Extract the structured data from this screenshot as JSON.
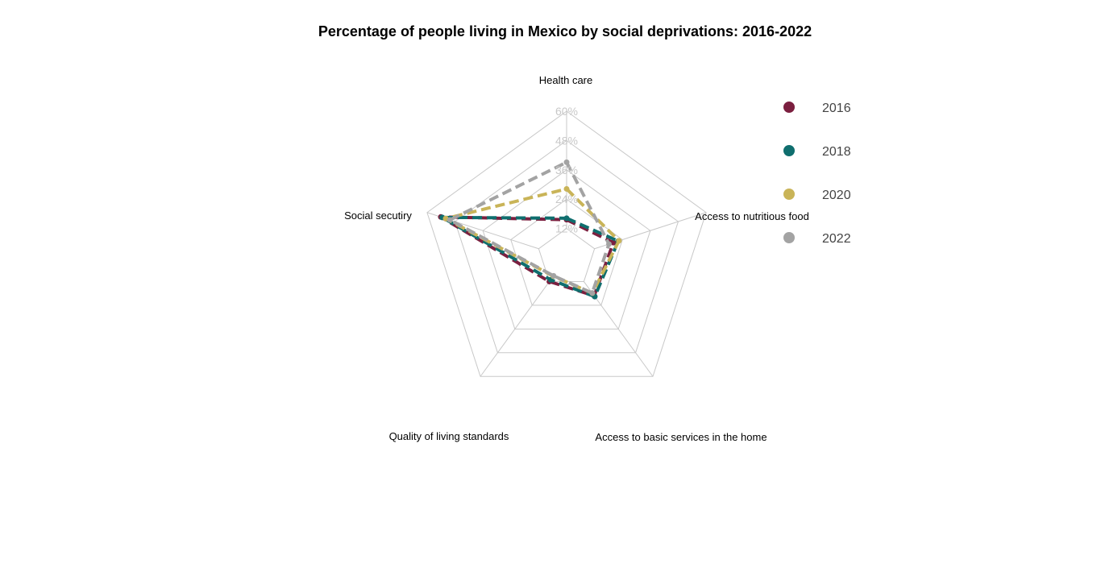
{
  "chart_data": {
    "type": "radar",
    "title": "Percentage of people living in Mexico by social deprivations: 2016-2022",
    "axes": [
      "Health care",
      "Access to nutritious food",
      "Access to basic services in the home",
      "Quality of living standards",
      "Social secutiry"
    ],
    "scale": {
      "min": 0,
      "max": 60,
      "ticks": [
        12,
        24,
        36,
        48,
        60
      ],
      "tick_labels": [
        "12%",
        "24%",
        "36%",
        "48%",
        "60%"
      ]
    },
    "grid": true,
    "legend_position": "right",
    "line_style": "dashed",
    "series": [
      {
        "name": "2016",
        "color": "#7b1f3f",
        "values": [
          15.6,
          20.1,
          19.2,
          12.0,
          54.1
        ]
      },
      {
        "name": "2018",
        "color": "#0f6e6e",
        "values": [
          16.2,
          22.2,
          19.6,
          11.1,
          53.5
        ]
      },
      {
        "name": "2020",
        "color": "#c9b458",
        "values": [
          28.2,
          22.5,
          17.9,
          9.3,
          52.0
        ]
      },
      {
        "name": "2022",
        "color": "#a3a3a3",
        "values": [
          39.1,
          18.2,
          17.8,
          9.1,
          50.2
        ]
      }
    ]
  }
}
